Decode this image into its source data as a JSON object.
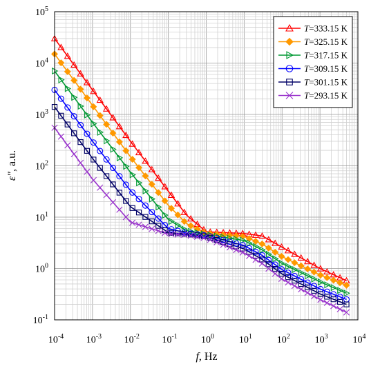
{
  "chart_data": {
    "type": "scatter",
    "title": "",
    "xlabel_var": "f",
    "xlabel_unit": ", Hz",
    "ylabel_var": "ε\"",
    "ylabel_unit": ", a.u.",
    "xscale": "log",
    "yscale": "log",
    "xlim": [
      0.0001,
      10000
    ],
    "ylim": [
      0.1,
      100000
    ],
    "grid": "major and minor",
    "legend_position": "top-right",
    "x_ticks": [
      {
        "base": "10",
        "exp": "-4"
      },
      {
        "base": "10",
        "exp": "-3"
      },
      {
        "base": "10",
        "exp": "-2"
      },
      {
        "base": "10",
        "exp": "-1"
      },
      {
        "base": "10",
        "exp": "0"
      },
      {
        "base": "10",
        "exp": "1"
      },
      {
        "base": "10",
        "exp": "2"
      },
      {
        "base": "10",
        "exp": "3"
      },
      {
        "base": "10",
        "exp": "4"
      }
    ],
    "y_ticks": [
      {
        "base": "10",
        "exp": "-1"
      },
      {
        "base": "10",
        "exp": "0"
      },
      {
        "base": "10",
        "exp": "1"
      },
      {
        "base": "10",
        "exp": "2"
      },
      {
        "base": "10",
        "exp": "3"
      },
      {
        "base": "10",
        "exp": "4"
      },
      {
        "base": "10",
        "exp": "5"
      }
    ],
    "series": [
      {
        "var": "T",
        "label": "=333.15 K",
        "marker": "triangle-up",
        "color": "#ff0000",
        "points": [
          [
            0.0001,
            30000
          ],
          [
            0.001,
            3000
          ],
          [
            0.01,
            300
          ],
          [
            0.1,
            32
          ],
          [
            0.3,
            11
          ],
          [
            1,
            5.2
          ],
          [
            10,
            4.8
          ],
          [
            30,
            4.3
          ],
          [
            100,
            2.6
          ],
          [
            1000,
            1.0
          ],
          [
            5000,
            0.58
          ]
        ]
      },
      {
        "var": "T",
        "label": "=325.15 K",
        "marker": "diamond",
        "color": "#ff9900",
        "points": [
          [
            0.0001,
            15000
          ],
          [
            0.001,
            1500
          ],
          [
            0.01,
            150
          ],
          [
            0.1,
            17
          ],
          [
            0.3,
            7.5
          ],
          [
            1,
            4.8
          ],
          [
            10,
            4.2
          ],
          [
            30,
            3.0
          ],
          [
            100,
            1.7
          ],
          [
            1000,
            0.75
          ],
          [
            5000,
            0.47
          ]
        ]
      },
      {
        "var": "T",
        "label": "=317.15 K",
        "marker": "triangle-right",
        "color": "#009933",
        "points": [
          [
            0.0001,
            7000
          ],
          [
            0.001,
            700
          ],
          [
            0.01,
            75
          ],
          [
            0.1,
            9
          ],
          [
            0.3,
            5.5
          ],
          [
            1,
            4.6
          ],
          [
            10,
            3.5
          ],
          [
            30,
            2.3
          ],
          [
            100,
            1.25
          ],
          [
            1000,
            0.55
          ],
          [
            5000,
            0.33
          ]
        ]
      },
      {
        "var": "T",
        "label": "=309.15 K",
        "marker": "circle",
        "color": "#0000ff",
        "points": [
          [
            0.0001,
            3000
          ],
          [
            0.001,
            300
          ],
          [
            0.01,
            33
          ],
          [
            0.1,
            6
          ],
          [
            0.3,
            4.9
          ],
          [
            1,
            4.4
          ],
          [
            10,
            2.8
          ],
          [
            30,
            1.8
          ],
          [
            100,
            0.95
          ],
          [
            1000,
            0.4
          ],
          [
            5000,
            0.25
          ]
        ]
      },
      {
        "var": "T",
        "label": "=301.15 K",
        "marker": "square",
        "color": "#000066",
        "points": [
          [
            0.0001,
            1400
          ],
          [
            0.001,
            140
          ],
          [
            0.01,
            16
          ],
          [
            0.1,
            5
          ],
          [
            0.3,
            4.7
          ],
          [
            1,
            4.2
          ],
          [
            10,
            2.4
          ],
          [
            30,
            1.5
          ],
          [
            100,
            0.78
          ],
          [
            1000,
            0.32
          ],
          [
            5000,
            0.2
          ]
        ]
      },
      {
        "var": "T",
        "label": "=293.15 K",
        "marker": "x",
        "color": "#9933cc",
        "points": [
          [
            0.0001,
            550
          ],
          [
            0.001,
            55
          ],
          [
            0.01,
            8
          ],
          [
            0.1,
            4.7
          ],
          [
            0.3,
            4.5
          ],
          [
            1,
            3.9
          ],
          [
            10,
            2.0
          ],
          [
            30,
            1.25
          ],
          [
            100,
            0.62
          ],
          [
            1000,
            0.25
          ],
          [
            5000,
            0.14
          ]
        ]
      }
    ]
  }
}
